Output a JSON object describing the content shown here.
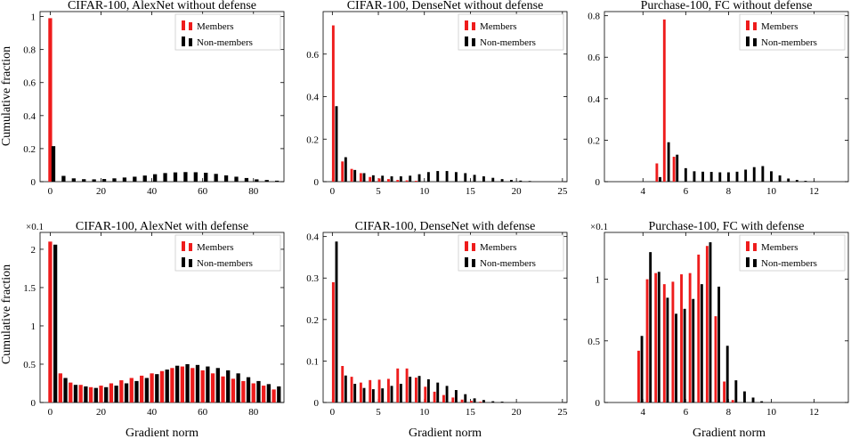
{
  "figure": {
    "x_label": "Gradient norm",
    "y_label": "Cumulative fraction",
    "legend": [
      "Members",
      "Non-members"
    ],
    "colors": {
      "members": "#ee1c1c",
      "nonmembers": "#000000"
    }
  },
  "chart_data": [
    {
      "type": "bar",
      "title": "CIFAR-100, AlexNet without defense",
      "xlim": [
        -4,
        92
      ],
      "ylim": [
        0,
        1.03
      ],
      "xticks": [
        0,
        20,
        40,
        60,
        80
      ],
      "yticks": [
        0,
        0.2,
        0.4,
        0.6,
        0.8,
        1
      ],
      "ytick_labels": [
        "0",
        "0.2",
        "0.4",
        "0.6",
        "0.8",
        "1"
      ],
      "multiplier": "",
      "bar_width": 1.5,
      "legend_position": "top-right",
      "series": [
        {
          "name": "Members",
          "x": [
            0
          ],
          "values": [
            0.99
          ]
        },
        {
          "name": "Non-members",
          "x": [
            1.25,
            5.25,
            9.25,
            13.25,
            17.25,
            21.25,
            25.25,
            29.25,
            33.25,
            37.25,
            41.25,
            45.25,
            49.25,
            53.25,
            57.25,
            61.25,
            65.25,
            69.25,
            73.25,
            77.25,
            81.25,
            85.25,
            89.25
          ],
          "values": [
            0.215,
            0.035,
            0.02,
            0.015,
            0.014,
            0.016,
            0.02,
            0.025,
            0.03,
            0.037,
            0.045,
            0.052,
            0.056,
            0.058,
            0.057,
            0.054,
            0.047,
            0.038,
            0.03,
            0.022,
            0.014,
            0.01,
            0.006
          ]
        }
      ]
    },
    {
      "type": "bar",
      "title": "CIFAR-100, DenseNet without defense",
      "xlim": [
        -1,
        25.5
      ],
      "ylim": [
        0,
        0.8
      ],
      "xticks": [
        0,
        5,
        10,
        15,
        20,
        25
      ],
      "yticks": [
        0,
        0.2,
        0.4,
        0.6
      ],
      "ytick_labels": [
        "0",
        "0.2",
        "0.4",
        "0.6"
      ],
      "multiplier": "",
      "bar_width": 0.28,
      "legend_position": "top-right",
      "series": [
        {
          "name": "Members",
          "x": [
            0.1,
            1.1,
            2.1,
            3.1,
            4.1,
            5.1,
            6.1,
            7.1,
            8.1,
            9.1
          ],
          "values": [
            0.735,
            0.095,
            0.06,
            0.04,
            0.022,
            0.015,
            0.012,
            0.008,
            0.006,
            0.004
          ]
        },
        {
          "name": "Non-members",
          "x": [
            0.45,
            1.45,
            2.45,
            3.45,
            4.45,
            5.45,
            6.45,
            7.45,
            8.45,
            9.45,
            10.45,
            11.45,
            12.45,
            13.45,
            14.45,
            15.45,
            16.45,
            17.45,
            18.45,
            19.45,
            20.45,
            21.45
          ],
          "values": [
            0.355,
            0.115,
            0.055,
            0.04,
            0.03,
            0.028,
            0.025,
            0.025,
            0.028,
            0.035,
            0.045,
            0.05,
            0.05,
            0.045,
            0.04,
            0.032,
            0.025,
            0.018,
            0.012,
            0.008,
            0.005,
            0.003
          ]
        }
      ]
    },
    {
      "type": "bar",
      "title": "Purchase-100, FC without defense",
      "xlim": [
        2.2,
        13.6
      ],
      "ylim": [
        0,
        0.82
      ],
      "xticks": [
        4,
        6,
        8,
        10,
        12
      ],
      "yticks": [
        0,
        0.2,
        0.4,
        0.6,
        0.8
      ],
      "ytick_labels": [
        "0",
        "0.2",
        "0.4",
        "0.6",
        "0.8"
      ],
      "multiplier": "",
      "bar_width": 0.12,
      "legend_position": "top-right",
      "series": [
        {
          "name": "Members",
          "x": [
            4.65,
            5.0,
            5.45
          ],
          "values": [
            0.088,
            0.782,
            0.12
          ]
        },
        {
          "name": "Non-members",
          "x": [
            4.8,
            5.2,
            5.6,
            6.0,
            6.4,
            6.8,
            7.2,
            7.6,
            8.0,
            8.4,
            8.8,
            9.2,
            9.6,
            10.0,
            10.4,
            10.8,
            11.2,
            11.6,
            12.0
          ],
          "values": [
            0.022,
            0.19,
            0.13,
            0.065,
            0.05,
            0.048,
            0.047,
            0.045,
            0.045,
            0.048,
            0.058,
            0.07,
            0.075,
            0.05,
            0.03,
            0.015,
            0.008,
            0.004,
            0.002
          ]
        }
      ]
    },
    {
      "type": "bar",
      "title": "CIFAR-100, AlexNet with defense",
      "xlim": [
        -4,
        92
      ],
      "ylim": [
        0,
        2.22
      ],
      "xticks": [
        0,
        20,
        40,
        60,
        80
      ],
      "yticks": [
        0,
        0.5,
        1,
        1.5,
        2
      ],
      "ytick_labels": [
        "0",
        "0.5",
        "1",
        "1.5",
        "2"
      ],
      "multiplier": "×0.1",
      "bar_width": 1.5,
      "legend_position": "top-right",
      "series": [
        {
          "name": "Members",
          "x": [
            0,
            4,
            8,
            12,
            16,
            20,
            24,
            28,
            32,
            36,
            40,
            44,
            48,
            52,
            56,
            60,
            64,
            68,
            72,
            76,
            80,
            84,
            88
          ],
          "values": [
            2.1,
            0.38,
            0.26,
            0.23,
            0.2,
            0.22,
            0.25,
            0.29,
            0.32,
            0.35,
            0.38,
            0.41,
            0.45,
            0.47,
            0.45,
            0.42,
            0.38,
            0.34,
            0.31,
            0.28,
            0.25,
            0.22,
            0.17
          ]
        },
        {
          "name": "Non-members",
          "x": [
            2,
            6,
            10,
            14,
            18,
            22,
            26,
            30,
            34,
            38,
            42,
            46,
            50,
            54,
            58,
            62,
            66,
            70,
            74,
            78,
            82,
            86,
            90
          ],
          "values": [
            2.06,
            0.32,
            0.23,
            0.21,
            0.19,
            0.2,
            0.22,
            0.25,
            0.28,
            0.32,
            0.37,
            0.43,
            0.48,
            0.5,
            0.49,
            0.47,
            0.45,
            0.42,
            0.38,
            0.33,
            0.28,
            0.24,
            0.21
          ]
        }
      ]
    },
    {
      "type": "bar",
      "title": "CIFAR-100, DenseNet with defense",
      "xlim": [
        -1,
        25.5
      ],
      "ylim": [
        0,
        0.41
      ],
      "xticks": [
        0,
        5,
        10,
        15,
        20,
        25
      ],
      "yticks": [
        0,
        0.1,
        0.2,
        0.3,
        0.4
      ],
      "ytick_labels": [
        "0",
        "0.1",
        "0.2",
        "0.3",
        "0.4"
      ],
      "multiplier": "",
      "bar_width": 0.28,
      "legend_position": "top-right",
      "series": [
        {
          "name": "Members",
          "x": [
            0.1,
            1.1,
            2.1,
            3.1,
            4.1,
            5.1,
            6.1,
            7.1,
            8.1,
            9.1,
            10.1,
            11.1,
            12.1,
            13.1,
            14.1,
            15.1,
            16.1
          ],
          "values": [
            0.29,
            0.088,
            0.062,
            0.048,
            0.054,
            0.055,
            0.057,
            0.082,
            0.082,
            0.06,
            0.038,
            0.026,
            0.018,
            0.012,
            0.007,
            0.004,
            0.002
          ]
        },
        {
          "name": "Non-members",
          "x": [
            0.45,
            1.45,
            2.45,
            3.45,
            4.45,
            5.45,
            6.45,
            7.45,
            8.45,
            9.45,
            10.45,
            11.45,
            12.45,
            13.45,
            14.45,
            15.45,
            16.45,
            17.45,
            18.45
          ],
          "values": [
            0.388,
            0.065,
            0.045,
            0.035,
            0.032,
            0.034,
            0.04,
            0.045,
            0.062,
            0.064,
            0.056,
            0.048,
            0.04,
            0.03,
            0.02,
            0.01,
            0.006,
            0.003,
            0.002
          ]
        }
      ]
    },
    {
      "type": "bar",
      "title": "Purchase-100, FC with defense",
      "xlim": [
        2.2,
        13.6
      ],
      "ylim": [
        0,
        1.38
      ],
      "xticks": [
        4,
        6,
        8,
        10,
        12
      ],
      "yticks": [
        0,
        0.5,
        1
      ],
      "ytick_labels": [
        "0",
        "0.5",
        "1"
      ],
      "multiplier": "×0.1",
      "bar_width": 0.12,
      "legend_position": "top-right",
      "series": [
        {
          "name": "Members",
          "x": [
            3.8,
            4.2,
            4.6,
            5.0,
            5.4,
            5.8,
            6.2,
            6.6,
            7.0,
            7.4,
            7.8,
            8.2
          ],
          "values": [
            0.42,
            1.0,
            1.05,
            0.96,
            0.98,
            1.04,
            1.05,
            1.2,
            1.27,
            0.7,
            0.17,
            0.02
          ]
        },
        {
          "name": "Non-members",
          "x": [
            3.95,
            4.35,
            4.75,
            5.15,
            5.55,
            5.95,
            6.35,
            6.75,
            7.15,
            7.55,
            7.95,
            8.35,
            8.75,
            9.15,
            9.55
          ],
          "values": [
            0.54,
            1.22,
            1.06,
            0.85,
            0.72,
            0.76,
            0.84,
            0.96,
            1.3,
            0.94,
            0.46,
            0.18,
            0.09,
            0.04,
            0.01
          ]
        }
      ]
    }
  ]
}
